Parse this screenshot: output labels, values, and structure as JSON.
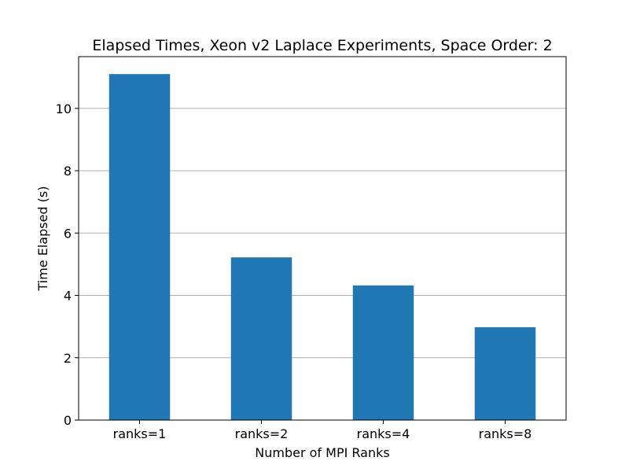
{
  "chart_data": {
    "type": "bar",
    "title": "Elapsed Times, Xeon v2 Laplace Experiments, Space Order: 2",
    "xlabel": "Number of MPI Ranks",
    "ylabel": "Time Elapsed (s)",
    "categories": [
      "ranks=1",
      "ranks=2",
      "ranks=4",
      "ranks=8"
    ],
    "values": [
      11.1,
      5.22,
      4.32,
      2.98
    ],
    "ylim": [
      0,
      11.66
    ],
    "yticks": [
      0,
      2,
      4,
      6,
      8,
      10
    ],
    "ytick_labels": [
      "0",
      "2",
      "4",
      "6",
      "8",
      "10"
    ],
    "grid": "horizontal",
    "legend": "none",
    "colors": {
      "bar": "#1f77b4",
      "grid": "#b0b0b0",
      "axis": "#000000"
    }
  }
}
